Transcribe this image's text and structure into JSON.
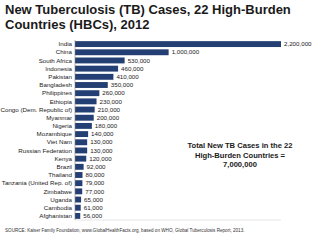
{
  "chart_data": {
    "type": "bar",
    "orientation": "horizontal",
    "title": "New Tuberculosis (TB) Cases, 22 High-Burden Countries (HBCs), 2012",
    "categories": [
      "India",
      "China",
      "South Africa",
      "Indonesia",
      "Pakistan",
      "Bangladesh",
      "Philippines",
      "Ethiopia",
      "Congo (Dem. Republic of)",
      "Myanmar",
      "Nigeria",
      "Mozambique",
      "Viet Nam",
      "Russian Federation",
      "Kenya",
      "Brazil",
      "Thailand",
      "Tanzania (United Rep. of)",
      "Zimbabwe",
      "Uganda",
      "Cambodia",
      "Afghanistan"
    ],
    "values": [
      2200000,
      1000000,
      530000,
      460000,
      410000,
      350000,
      260000,
      230000,
      210000,
      200000,
      180000,
      140000,
      130000,
      130000,
      120000,
      92000,
      80000,
      79000,
      77000,
      65000,
      61000,
      56000
    ],
    "value_labels": [
      "2,200,000",
      "1,000,000",
      "530,000",
      "460,000",
      "410,000",
      "350,000",
      "260,000",
      "230,000",
      "210,000",
      "200,000",
      "180,000",
      "140,000",
      "130,000",
      "130,000",
      "120,000",
      "92,000",
      "80,000",
      "79,000",
      "77,000",
      "65,000",
      "61,000",
      "56,000"
    ],
    "color": "#233f73",
    "xlim": [
      0,
      2200000
    ],
    "data_labels": true,
    "tick_labels": "y",
    "grid": false,
    "annotation": [
      "Total New TB Cases in the 22",
      "High-Burden Countries =",
      "7,000,000"
    ],
    "source": "SOURCE: Kaiser Family Foundation, www.GlobalHealthFacts.org, based on WHO, Global Tuberculosis Report, 2013."
  }
}
